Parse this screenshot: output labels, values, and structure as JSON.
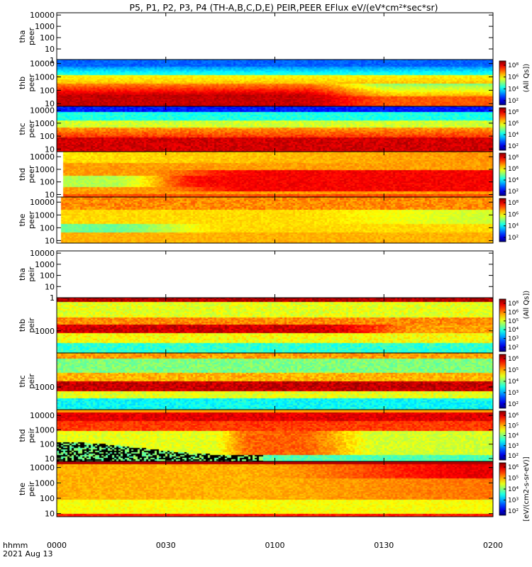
{
  "title": "P5, P1, P2, P3, P4 (TH-A,B,C,D,E) PEIR,PEER EFlux eV/(eV*cm²*sec*sr)",
  "time_axis": {
    "label_line1": "hhmm",
    "label_line2": "2021 Aug 13",
    "ticks": [
      "0000",
      "0030",
      "0100",
      "0130",
      "0200"
    ],
    "tick_values_min": [
      0,
      30,
      60,
      90,
      120
    ],
    "range_min": [
      0,
      120
    ]
  },
  "colorbar_labels": {
    "all_qs": "(All Qs])",
    "units": "[eV/(cm2-s-sr-eV)]",
    "ev_units": "[eV/(cm²-s-sr-eV)]"
  },
  "panels": [
    {
      "ylabel": [
        "tha",
        "peer"
      ],
      "yticks": [
        "1",
        "10",
        "100",
        "1000",
        "10000"
      ],
      "yrange_log": [
        0,
        4.2
      ],
      "has_data": false,
      "colorbar": false
    },
    {
      "ylabel": [
        "thb",
        "peer"
      ],
      "yticks": [
        "10",
        "100",
        "1000",
        "10000"
      ],
      "yrange_log": [
        0.8,
        4.3
      ],
      "has_data": true,
      "colorbar": true,
      "cb_ticks": [
        "10⁸",
        "10⁶",
        "10⁴",
        "10²"
      ],
      "profile": "thb_peer"
    },
    {
      "ylabel": [
        "thc",
        "peer"
      ],
      "yticks": [
        "10",
        "100",
        "1000",
        "10000"
      ],
      "yrange_log": [
        0.8,
        4.3
      ],
      "has_data": true,
      "colorbar": true,
      "cb_ticks": [
        "10⁸",
        "10⁶",
        "10⁴",
        "10²"
      ],
      "profile": "thc_peer"
    },
    {
      "ylabel": [
        "thd",
        "peer"
      ],
      "yticks": [
        "10",
        "100",
        "1000",
        "10000"
      ],
      "yrange_log": [
        0.8,
        4.4
      ],
      "has_data": true,
      "colorbar": true,
      "cb_ticks": [
        "10⁸",
        "10⁶",
        "10⁴",
        "10²"
      ],
      "profile": "thd_peer"
    },
    {
      "ylabel": [
        "the",
        "peer"
      ],
      "yticks": [
        "10",
        "100",
        "1000",
        "10000"
      ],
      "yrange_log": [
        0.8,
        4.4
      ],
      "has_data": true,
      "colorbar": true,
      "cb_ticks": [
        "10⁸",
        "10⁶",
        "10⁴",
        "10²"
      ],
      "profile": "the_peer"
    },
    {
      "ylabel": [
        "tha",
        "peir"
      ],
      "yticks": [
        "1",
        "10",
        "100",
        "1000",
        "10000"
      ],
      "yrange_log": [
        0,
        4.2
      ],
      "has_data": false,
      "colorbar": false
    },
    {
      "ylabel": [
        "thb",
        "peir"
      ],
      "yticks": [
        "1000"
      ],
      "yrange_log": [
        2.2,
        4.2
      ],
      "has_data": true,
      "colorbar": true,
      "cb_ticks": [
        "10⁸",
        "10⁶",
        "10⁵",
        "10⁴",
        "10³",
        "10²"
      ],
      "profile": "thb_peir"
    },
    {
      "ylabel": [
        "thc",
        "peir"
      ],
      "yticks": [
        "1000"
      ],
      "yrange_log": [
        2.2,
        4.2
      ],
      "has_data": true,
      "colorbar": true,
      "cb_ticks": [
        "10⁶",
        "10⁵",
        "10⁴",
        "10³",
        "10²"
      ],
      "profile": "thc_peir"
    },
    {
      "ylabel": [
        "thd",
        "peir"
      ],
      "yticks": [
        "10",
        "100",
        "1000",
        "10000"
      ],
      "yrange_log": [
        0.8,
        4.4
      ],
      "has_data": true,
      "colorbar": true,
      "cb_ticks": [
        "10⁶",
        "10⁵",
        "10⁴",
        "10³",
        "10²"
      ],
      "profile": "thd_peir"
    },
    {
      "ylabel": [
        "the",
        "peir"
      ],
      "yticks": [
        "10",
        "100",
        "1000",
        "10000"
      ],
      "yrange_log": [
        0.8,
        4.4
      ],
      "has_data": true,
      "colorbar": true,
      "cb_ticks": [
        "10⁶",
        "10⁵",
        "10⁴",
        "10³",
        "10²"
      ],
      "profile": "the_peir"
    }
  ],
  "chart_data": {
    "type": "heatmap",
    "title": "P5, P1, P2, P3, P4 (TH-A,B,C,D,E) PEIR,PEER EFlux eV/(eV*cm²*sec*sr)",
    "xlabel": "hhmm",
    "x_ticks": [
      "0000",
      "0030",
      "0100",
      "0130",
      "0200"
    ],
    "x_range": [
      "0000",
      "0200"
    ],
    "y_scale": "log",
    "colorscale": "rainbow (blue low, red high)",
    "series": [
      {
        "name": "tha peer",
        "has_data": false
      },
      {
        "name": "thb peer",
        "has_data": true
      },
      {
        "name": "thc peer",
        "has_data": true
      },
      {
        "name": "thd peer",
        "has_data": true
      },
      {
        "name": "the peer",
        "has_data": true
      },
      {
        "name": "tha peir",
        "has_data": false
      },
      {
        "name": "thb peir",
        "has_data": true
      },
      {
        "name": "thc peir",
        "has_data": true
      },
      {
        "name": "thd peir",
        "has_data": true
      },
      {
        "name": "the peir",
        "has_data": true
      }
    ]
  }
}
